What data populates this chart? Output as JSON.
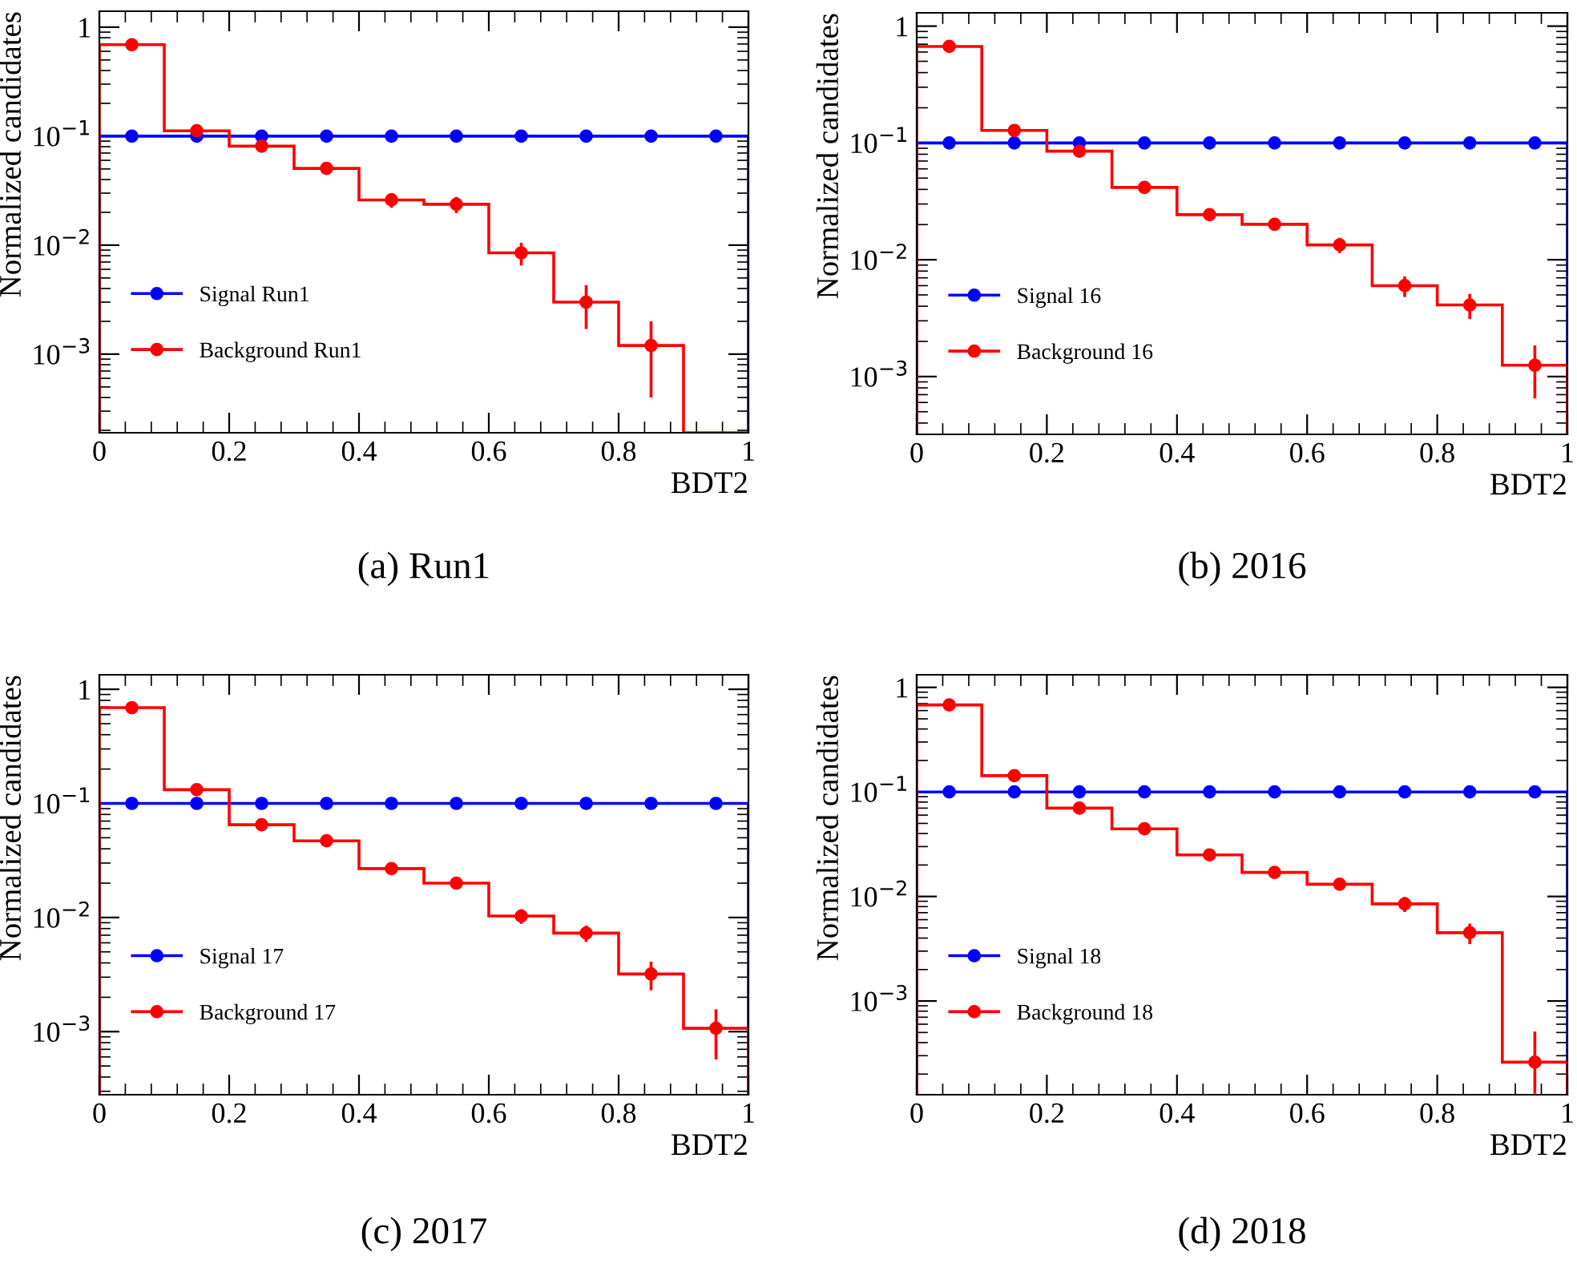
{
  "chart_data": [
    {
      "type": "histogram",
      "xlabel": "BDT2",
      "ylabel": "Normalized candidates",
      "annotations": [
        "(a) Run1"
      ],
      "bins": [
        0,
        0.1,
        0.2,
        0.3,
        0.4,
        0.5,
        0.6,
        0.7,
        0.8,
        0.9,
        1
      ],
      "log": "y",
      "xlim": [
        0,
        1
      ],
      "ylim": [
        0.00019,
        1.4
      ],
      "xticks": [
        0,
        0.2,
        0.4,
        0.6,
        0.8,
        1
      ],
      "yticks": [
        {
          "value": 0.001,
          "label": "10$^{−3}$"
        },
        {
          "value": 0.01,
          "label": "10$^{−2}$"
        },
        {
          "value": 0.1,
          "label": "10$^{−1}$"
        },
        1
      ],
      "legend": "bottom left",
      "marker": "circle",
      "grid": false,
      "series": [
        {
          "name": "Signal Run1",
          "color": "#0000ff",
          "values": [
            0.1,
            0.1,
            0.1,
            0.1,
            0.1,
            0.1,
            0.1,
            0.1,
            0.1,
            0.1
          ]
        },
        {
          "name": "Background Run1",
          "color": "#ff0000",
          "values": [
            0.69,
            0.112,
            0.081,
            0.0506,
            0.026,
            0.0237,
            0.0085,
            0.003,
            0.0012,
            null
          ]
        },
        {
          "type": "scatter",
          "color": "#0000ff",
          "x": [
            0.05,
            0.15,
            0.25,
            0.35,
            0.45,
            0.55,
            0.65,
            0.75,
            0.85,
            0.95
          ],
          "values": [
            0.1,
            0.1,
            0.1,
            0.1,
            0.1,
            0.1,
            0.1,
            0.1,
            0.1,
            0.1
          ]
        },
        {
          "type": "scatter",
          "color": "#ff0000",
          "x": [
            0.05,
            0.15,
            0.25,
            0.35,
            0.45,
            0.55,
            0.65,
            0.75,
            0.85
          ],
          "values": [
            0.69,
            0.112,
            0.081,
            0.0506,
            0.026,
            0.0237,
            0.0085,
            0.003,
            0.0012
          ],
          "errors": [
            null,
            null,
            null,
            null,
            0.004,
            0.004,
            0.002,
            0.0013,
            0.0008
          ]
        }
      ]
    },
    {
      "type": "histogram",
      "xlabel": "BDT2",
      "ylabel": "Normalized candidates",
      "annotations": [
        "(b) 2016"
      ],
      "bins": [
        0,
        0.1,
        0.2,
        0.3,
        0.4,
        0.5,
        0.6,
        0.7,
        0.8,
        0.9,
        1
      ],
      "log": "y",
      "xlim": [
        0,
        1
      ],
      "ylim": [
        0.00032,
        1.3
      ],
      "xticks": [
        0,
        0.2,
        0.4,
        0.6,
        0.8,
        1
      ],
      "yticks": [
        {
          "value": 0.001,
          "label": "10$^{−3}$"
        },
        {
          "value": 0.01,
          "label": "10$^{−2}$"
        },
        {
          "value": 0.1,
          "label": "10$^{−1}$"
        },
        1
      ],
      "legend": "bottom left",
      "marker": "circle",
      "grid": false,
      "series": [
        {
          "name": "Signal 16",
          "color": "#0000ff",
          "values": [
            0.1,
            0.1,
            0.1,
            0.1,
            0.1,
            0.1,
            0.1,
            0.1,
            0.1,
            0.1
          ]
        },
        {
          "name": "Background 16",
          "color": "#ff0000",
          "values": [
            0.67,
            0.128,
            0.085,
            0.0416,
            0.0243,
            0.0201,
            0.0134,
            0.006,
            0.0041,
            0.00125
          ]
        },
        {
          "type": "scatter",
          "color": "#0000ff",
          "x": [
            0.05,
            0.15,
            0.25,
            0.35,
            0.45,
            0.55,
            0.65,
            0.75,
            0.85,
            0.95
          ],
          "values": [
            0.1,
            0.1,
            0.1,
            0.1,
            0.1,
            0.1,
            0.1,
            0.1,
            0.1,
            0.1
          ]
        },
        {
          "type": "scatter",
          "color": "#ff0000",
          "x": [
            0.05,
            0.15,
            0.25,
            0.35,
            0.45,
            0.55,
            0.65,
            0.75,
            0.85,
            0.95
          ],
          "values": [
            0.67,
            0.128,
            0.085,
            0.0416,
            0.0243,
            0.0201,
            0.0134,
            0.006,
            0.0041,
            0.00125
          ],
          "errors": [
            null,
            null,
            null,
            null,
            0.002,
            0.002,
            0.002,
            0.0012,
            0.001,
            0.0006
          ]
        }
      ]
    },
    {
      "type": "histogram",
      "xlabel": "BDT2",
      "ylabel": "Normalized candidates",
      "annotations": [
        "(c) 2017"
      ],
      "bins": [
        0,
        0.1,
        0.2,
        0.3,
        0.4,
        0.5,
        0.6,
        0.7,
        0.8,
        0.9,
        1
      ],
      "log": "y",
      "xlim": [
        0,
        1
      ],
      "ylim": [
        0.00028,
        1.34
      ],
      "xticks": [
        0,
        0.2,
        0.4,
        0.6,
        0.8,
        1
      ],
      "yticks": [
        {
          "value": 0.001,
          "label": "10$^{−3}$"
        },
        {
          "value": 0.01,
          "label": "10$^{−2}$"
        },
        {
          "value": 0.1,
          "label": "10$^{−1}$"
        },
        1
      ],
      "legend": "bottom left",
      "marker": "circle",
      "grid": false,
      "series": [
        {
          "name": "Signal 17",
          "color": "#0000ff",
          "values": [
            0.1,
            0.1,
            0.1,
            0.1,
            0.1,
            0.1,
            0.1,
            0.1,
            0.1,
            0.1
          ]
        },
        {
          "name": "Background 17",
          "color": "#ff0000",
          "values": [
            0.69,
            0.132,
            0.065,
            0.047,
            0.0268,
            0.02,
            0.0103,
            0.0073,
            0.0032,
            0.00107
          ]
        },
        {
          "type": "scatter",
          "color": "#0000ff",
          "x": [
            0.05,
            0.15,
            0.25,
            0.35,
            0.45,
            0.55,
            0.65,
            0.75,
            0.85,
            0.95
          ],
          "values": [
            0.1,
            0.1,
            0.1,
            0.1,
            0.1,
            0.1,
            0.1,
            0.1,
            0.1,
            0.1
          ]
        },
        {
          "type": "scatter",
          "color": "#ff0000",
          "x": [
            0.05,
            0.15,
            0.25,
            0.35,
            0.45,
            0.55,
            0.65,
            0.75,
            0.85,
            0.95
          ],
          "values": [
            0.69,
            0.132,
            0.065,
            0.047,
            0.0268,
            0.02,
            0.0103,
            0.0073,
            0.0032,
            0.00107
          ],
          "errors": [
            null,
            null,
            null,
            null,
            0.002,
            0.0015,
            0.0015,
            0.0012,
            0.0009,
            0.0005
          ]
        }
      ]
    },
    {
      "type": "histogram",
      "xlabel": "BDT2",
      "ylabel": "Normalized candidates",
      "annotations": [
        "(d) 2018"
      ],
      "bins": [
        0,
        0.1,
        0.2,
        0.3,
        0.4,
        0.5,
        0.6,
        0.7,
        0.8,
        0.9,
        1
      ],
      "log": "y",
      "xlim": [
        0,
        1
      ],
      "ylim": [
        0.000127,
        1.32
      ],
      "xticks": [
        0,
        0.2,
        0.4,
        0.6,
        0.8,
        1
      ],
      "yticks": [
        {
          "value": 0.001,
          "label": "10$^{−3}$"
        },
        {
          "value": 0.01,
          "label": "10$^{−2}$"
        },
        {
          "value": 0.1,
          "label": "10$^{−1}$"
        },
        1
      ],
      "legend": "bottom left",
      "marker": "circle",
      "grid": false,
      "series": [
        {
          "name": "Signal 18",
          "color": "#0000ff",
          "values": [
            0.1,
            0.1,
            0.1,
            0.1,
            0.1,
            0.1,
            0.1,
            0.1,
            0.1,
            0.1
          ]
        },
        {
          "name": "Background 18",
          "color": "#ff0000",
          "values": [
            0.68,
            0.143,
            0.07,
            0.0444,
            0.025,
            0.017,
            0.0131,
            0.0085,
            0.0045,
            0.00026
          ]
        },
        {
          "type": "scatter",
          "color": "#0000ff",
          "x": [
            0.05,
            0.15,
            0.25,
            0.35,
            0.45,
            0.55,
            0.65,
            0.75,
            0.85,
            0.95
          ],
          "values": [
            0.1,
            0.1,
            0.1,
            0.1,
            0.1,
            0.1,
            0.1,
            0.1,
            0.1,
            0.1
          ]
        },
        {
          "type": "scatter",
          "color": "#ff0000",
          "x": [
            0.05,
            0.15,
            0.25,
            0.35,
            0.45,
            0.55,
            0.65,
            0.75,
            0.85,
            0.95
          ],
          "values": [
            0.68,
            0.143,
            0.07,
            0.0444,
            0.025,
            0.017,
            0.0131,
            0.0085,
            0.0045,
            0.00026
          ],
          "errors": [
            null,
            null,
            null,
            null,
            0.002,
            0.0015,
            0.0015,
            0.0014,
            0.001,
            [
              0.00013,
              0.00051
            ]
          ]
        }
      ]
    }
  ]
}
